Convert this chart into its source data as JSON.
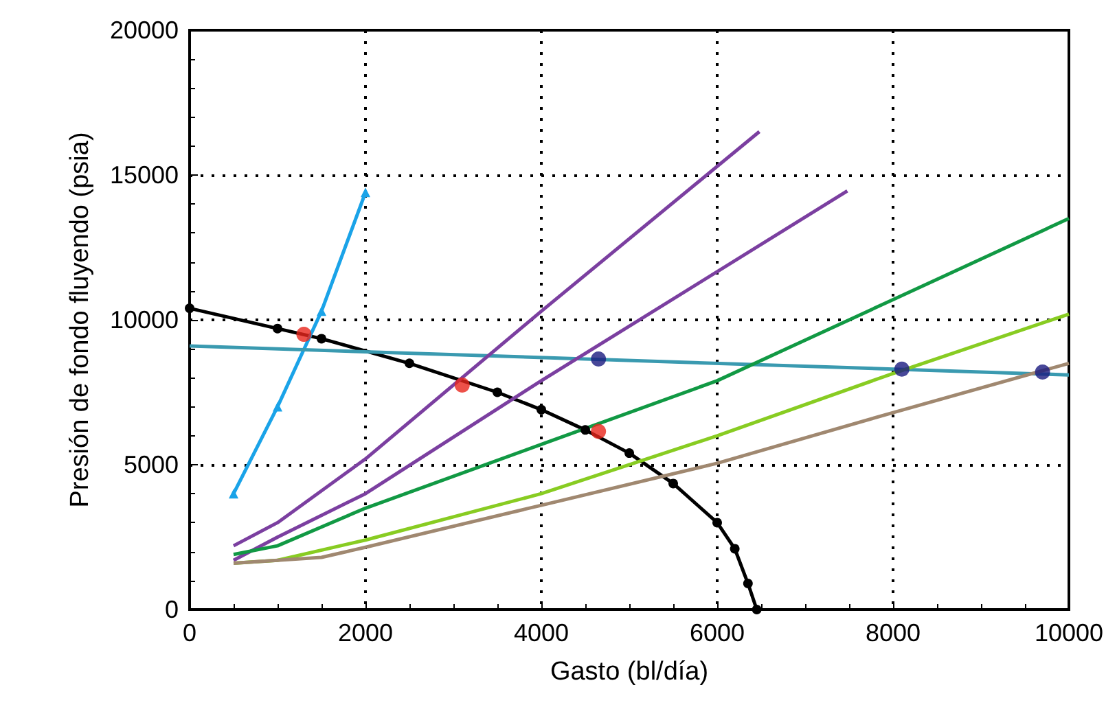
{
  "chart_data": {
    "type": "line",
    "xlabel": "Gasto (bl/día)",
    "ylabel": "Presión de fondo fluyendo (psia)",
    "xlim": [
      0,
      10000
    ],
    "xticks": [
      0,
      2000,
      4000,
      6000,
      8000,
      10000
    ],
    "ylim": [
      0,
      20000
    ],
    "yticks": [
      0,
      5000,
      10000,
      15000,
      20000
    ],
    "grid": true,
    "series": [
      {
        "color": "#000000",
        "marker": "circle",
        "x": [
          0,
          1000,
          1500,
          2500,
          3500,
          4000,
          4500,
          5000,
          5500,
          6000,
          6200,
          6350,
          6450
        ],
        "values": [
          10400,
          9700,
          9350,
          8500,
          7500,
          6900,
          6200,
          5400,
          4350,
          3000,
          2100,
          900,
          0
        ]
      },
      {
        "color": "#1aa3e8",
        "marker": "triangle",
        "x": [
          500,
          1000,
          1500,
          2000
        ],
        "values": [
          4000,
          7000,
          10300,
          14400
        ]
      },
      {
        "color": "#3a9ab0",
        "marker": "none",
        "x": [
          0,
          10000
        ],
        "values": [
          9100,
          8100
        ]
      },
      {
        "color": "#7b3fa0",
        "marker": "none",
        "x": [
          500,
          1000,
          2000,
          4000,
          6480
        ],
        "values": [
          2200,
          3000,
          5200,
          10300,
          16500
        ]
      },
      {
        "color": "#7b3fa0",
        "marker": "none",
        "x": [
          500,
          1000,
          2000,
          4000,
          7480
        ],
        "values": [
          1700,
          2500,
          4000,
          7900,
          14450
        ]
      },
      {
        "color": "#119944",
        "marker": "none",
        "x": [
          500,
          1000,
          2000,
          4000,
          6000,
          8000,
          10000
        ],
        "values": [
          1900,
          2200,
          3500,
          5700,
          7900,
          10700,
          13500
        ]
      },
      {
        "color": "#88cc22",
        "marker": "none",
        "x": [
          500,
          1000,
          2000,
          4000,
          6000,
          8000,
          10000
        ],
        "values": [
          1600,
          1700,
          2400,
          4000,
          6000,
          8150,
          10200
        ]
      },
      {
        "color": "#a08870",
        "marker": "none",
        "x": [
          500,
          1500,
          2000,
          4000,
          6000,
          8000,
          10000
        ],
        "values": [
          1600,
          1800,
          2150,
          3600,
          5050,
          6800,
          8500
        ]
      },
      {
        "type": "scatter",
        "color": "#e8261c",
        "marker": "circle",
        "x": [
          1300,
          3100,
          4650
        ],
        "values": [
          9500,
          7750,
          6150
        ]
      },
      {
        "type": "scatter",
        "color": "#1a1a80",
        "marker": "circle",
        "x": [
          4650,
          8100,
          9700
        ],
        "values": [
          8650,
          8300,
          8200
        ]
      }
    ]
  }
}
